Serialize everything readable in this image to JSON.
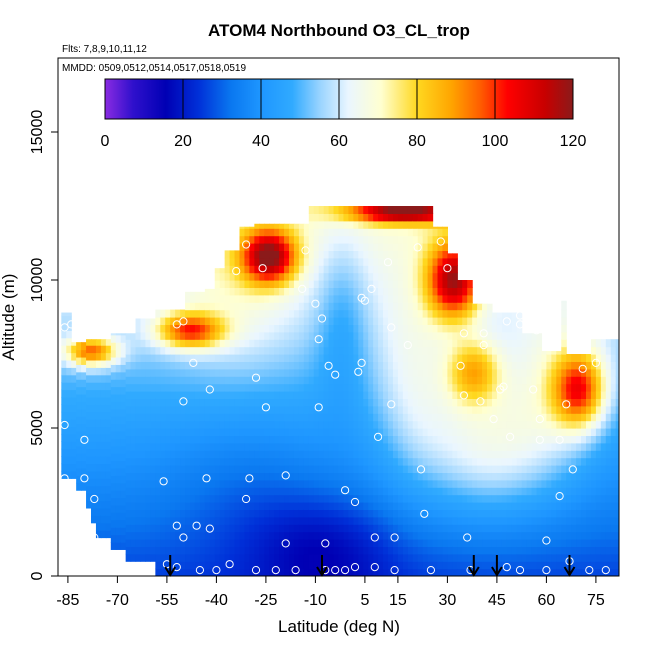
{
  "chart_data": {
    "type": "heatmap",
    "title": "ATOM4 Northbound O3_CL_trop",
    "subtitle_flights": "Flts: 7,8,9,10,11,12",
    "subtitle_dates": "MMDD: 0509,0512,0514,0517,0518,0519",
    "xlabel": "Latitude (deg N)",
    "ylabel": "Altitude (m)",
    "xlim": [
      -88,
      82
    ],
    "ylim": [
      0,
      17500
    ],
    "x_ticks": [
      -85,
      -70,
      -55,
      -40,
      -25,
      -10,
      5,
      15,
      30,
      45,
      60,
      75
    ],
    "x_tick_labels": [
      "-85",
      "-70",
      "-55",
      "-40",
      "-25",
      "-10",
      "5",
      "15",
      "30",
      "45",
      "60",
      "75"
    ],
    "y_ticks": [
      0,
      5000,
      10000,
      15000
    ],
    "y_tick_labels": [
      "0",
      "5000",
      "10000",
      "15000"
    ],
    "colorbar": {
      "min": 0,
      "max": 120,
      "ticks": [
        0,
        20,
        40,
        60,
        80,
        100,
        120
      ],
      "tick_labels": [
        "0",
        "20",
        "40",
        "60",
        "80",
        "100",
        "120"
      ]
    },
    "profile_latitudes": [
      -54,
      -8,
      38,
      45,
      67
    ],
    "sample_points": [
      [
        -86,
        8400
      ],
      [
        -86,
        5100
      ],
      [
        -86,
        3300
      ],
      [
        -84,
        8500
      ],
      [
        -80,
        4600
      ],
      [
        -80,
        3300
      ],
      [
        -77,
        2600
      ],
      [
        -77,
        1300
      ],
      [
        -73,
        400
      ],
      [
        -56,
        3200
      ],
      [
        -55,
        400
      ],
      [
        -52,
        8500
      ],
      [
        -52,
        1700
      ],
      [
        -52,
        300
      ],
      [
        -50,
        8600
      ],
      [
        -50,
        5900
      ],
      [
        -50,
        1300
      ],
      [
        -47,
        7200
      ],
      [
        -46,
        1700
      ],
      [
        -45,
        200
      ],
      [
        -42,
        6300
      ],
      [
        -43,
        3300
      ],
      [
        -42,
        1600
      ],
      [
        -40,
        200
      ],
      [
        -36,
        400
      ],
      [
        -34,
        10300
      ],
      [
        -31,
        11200
      ],
      [
        -31,
        2600
      ],
      [
        -30,
        3300
      ],
      [
        -28,
        6700
      ],
      [
        -28,
        200
      ],
      [
        -26,
        10400
      ],
      [
        -25,
        5700
      ],
      [
        -22,
        200
      ],
      [
        -19,
        3400
      ],
      [
        -19,
        1100
      ],
      [
        -16,
        200
      ],
      [
        -14,
        9700
      ],
      [
        -13,
        11000
      ],
      [
        -10,
        9200
      ],
      [
        -9,
        5700
      ],
      [
        -9,
        8000
      ],
      [
        -8,
        8700
      ],
      [
        -7,
        200
      ],
      [
        -7,
        1100
      ],
      [
        -6,
        7100
      ],
      [
        -4,
        6800
      ],
      [
        -4,
        200
      ],
      [
        -1,
        2900
      ],
      [
        -1,
        200
      ],
      [
        2,
        2500
      ],
      [
        2,
        300
      ],
      [
        4,
        7200
      ],
      [
        3,
        6900
      ],
      [
        4,
        9400
      ],
      [
        5,
        9300
      ],
      [
        7,
        9700
      ],
      [
        8,
        1300
      ],
      [
        8,
        300
      ],
      [
        9,
        4700
      ],
      [
        12,
        10600
      ],
      [
        13,
        5800
      ],
      [
        13,
        8400
      ],
      [
        14,
        1300
      ],
      [
        14,
        200
      ],
      [
        18,
        7800
      ],
      [
        21,
        11100
      ],
      [
        22,
        3600
      ],
      [
        23,
        2100
      ],
      [
        25,
        200
      ],
      [
        28,
        11300
      ],
      [
        30,
        10400
      ],
      [
        34,
        7100
      ],
      [
        35,
        8200
      ],
      [
        35,
        6100
      ],
      [
        36,
        1300
      ],
      [
        37,
        200
      ],
      [
        40,
        5900
      ],
      [
        41,
        8200
      ],
      [
        41,
        7800
      ],
      [
        44,
        5300
      ],
      [
        46,
        6300
      ],
      [
        47,
        6400
      ],
      [
        48,
        8600
      ],
      [
        48,
        300
      ],
      [
        49,
        4700
      ],
      [
        52,
        8800
      ],
      [
        52,
        8500
      ],
      [
        52,
        200
      ],
      [
        54,
        8700
      ],
      [
        56,
        6300
      ],
      [
        57,
        8300
      ],
      [
        58,
        5300
      ],
      [
        58,
        4600
      ],
      [
        60,
        8100
      ],
      [
        60,
        1200
      ],
      [
        60,
        200
      ],
      [
        63,
        9300
      ],
      [
        64,
        4600
      ],
      [
        64,
        2700
      ],
      [
        66,
        5800
      ],
      [
        67,
        500
      ],
      [
        68,
        3600
      ],
      [
        71,
        7000
      ],
      [
        73,
        200
      ],
      [
        75,
        7200
      ],
      [
        78,
        200
      ]
    ]
  }
}
